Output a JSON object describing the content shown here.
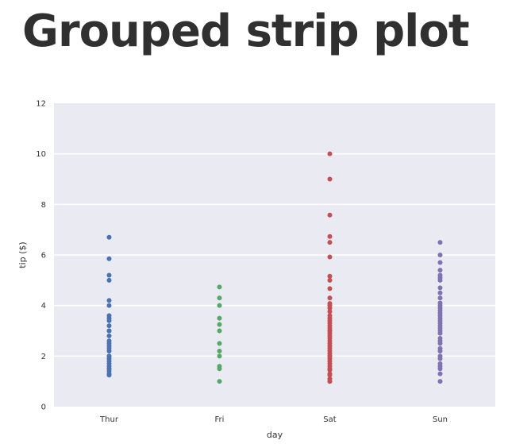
{
  "slide": {
    "title": "Grouped strip plot"
  },
  "chart_data": {
    "type": "scatter",
    "subtype": "strip",
    "xlabel": "day",
    "ylabel": "tip ($)",
    "ylim": [
      0,
      12
    ],
    "yticks": [
      "0",
      "2",
      "4",
      "6",
      "8",
      "10",
      "12"
    ],
    "categories": [
      "Thur",
      "Fri",
      "Sat",
      "Sun"
    ],
    "grid": true,
    "style": {
      "background": "#eaeaf2",
      "grid_color": "#ffffff"
    },
    "series": [
      {
        "category": "Thur",
        "color": "#4c72b0",
        "values": [
          6.7,
          5.85,
          5.2,
          5.0,
          4.2,
          4.0,
          3.6,
          3.5,
          3.4,
          3.2,
          3.0,
          3.0,
          2.8,
          2.6,
          2.5,
          2.4,
          2.3,
          2.2,
          2.0,
          2.0,
          1.9,
          1.8,
          1.7,
          1.6,
          1.5,
          1.5,
          1.4,
          1.3,
          1.25
        ]
      },
      {
        "category": "Fri",
        "color": "#55a868",
        "values": [
          4.73,
          4.3,
          4.0,
          3.5,
          3.25,
          3.0,
          2.5,
          2.2,
          2.0,
          1.6,
          1.5,
          1.0
        ]
      },
      {
        "category": "Sat",
        "color": "#c44e52",
        "values": [
          10.0,
          9.0,
          7.58,
          6.73,
          6.5,
          5.92,
          5.16,
          5.0,
          4.67,
          4.3,
          4.08,
          4.0,
          3.9,
          3.76,
          3.6,
          3.5,
          3.4,
          3.3,
          3.2,
          3.1,
          3.0,
          3.0,
          2.9,
          2.8,
          2.7,
          2.6,
          2.5,
          2.4,
          2.3,
          2.2,
          2.1,
          2.0,
          2.0,
          1.9,
          1.8,
          1.7,
          1.6,
          1.5,
          1.45,
          1.3,
          1.25,
          1.1,
          1.0,
          1.0
        ]
      },
      {
        "category": "Sun",
        "color": "#8172b2",
        "values": [
          6.5,
          6.0,
          5.7,
          5.4,
          5.2,
          5.1,
          5.0,
          4.7,
          4.5,
          4.3,
          4.1,
          4.0,
          3.9,
          3.8,
          3.7,
          3.6,
          3.5,
          3.4,
          3.3,
          3.2,
          3.1,
          3.0,
          2.9,
          2.7,
          2.6,
          2.5,
          2.3,
          2.2,
          2.0,
          1.9,
          1.7,
          1.6,
          1.5,
          1.3,
          1.0
        ]
      }
    ]
  }
}
